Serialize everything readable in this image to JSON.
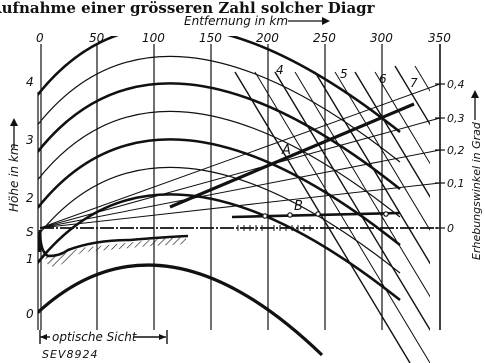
{
  "header_text": "Aufnahme einer grösseren Zahl solcher Diagr",
  "top_axis": {
    "title": "Entfernung in km",
    "ticks": [
      "0",
      "50",
      "100",
      "150",
      "200",
      "250",
      "300",
      "350"
    ]
  },
  "left_axis": {
    "title": "Höhe in km",
    "ticks": [
      "0",
      "1",
      "2",
      "3",
      "4"
    ],
    "s_label": "S"
  },
  "right_axis": {
    "title": "Erhebungswinkel in Grad",
    "ticks": [
      "0",
      "0,1",
      "0,2",
      "0,3",
      "0,4"
    ]
  },
  "curve_labels": {
    "a": "A",
    "b": "B",
    "four": "4",
    "five": "5",
    "six": "6",
    "seven": "7"
  },
  "optical_range_label": "optische Sicht",
  "figure_id": "SEV8924"
}
